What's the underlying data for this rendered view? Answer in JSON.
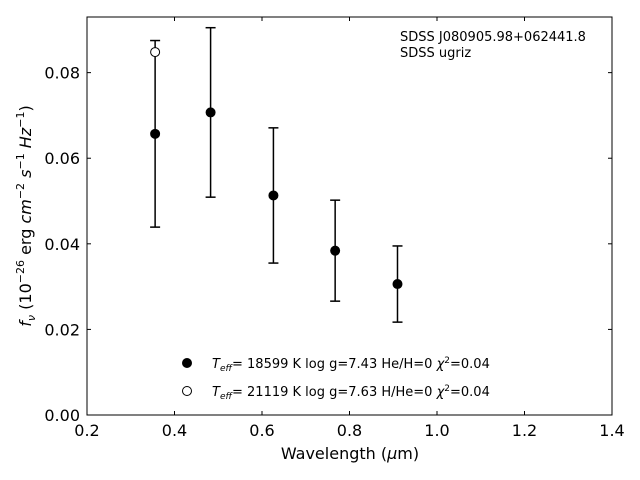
{
  "chart_data": {
    "type": "scatter",
    "annotation": {
      "object": "SDSS J080905.98+062441.8",
      "survey": "SDSS ugriz"
    },
    "xlabel": "Wavelength (μm)",
    "ylabel": "f_ν (10^-26 erg cm^-2 s^-1 Hz^-1)",
    "xlim": [
      0.2,
      1.4
    ],
    "ylim": [
      0.0,
      0.093
    ],
    "xticks": [
      "0.2",
      "0.4",
      "0.6",
      "0.8",
      "1.0",
      "1.2",
      "1.4"
    ],
    "yticks": [
      "0.00",
      "0.02",
      "0.04",
      "0.06",
      "0.08"
    ],
    "grid": false,
    "legend_position": "bottom-center",
    "observed": {
      "x": [
        0.3557,
        0.4825,
        0.6261,
        0.7672,
        0.9097
      ],
      "y": [
        0.0657,
        0.0707,
        0.0513,
        0.0384,
        0.0306
      ],
      "yerr": [
        0.0218,
        0.0198,
        0.0158,
        0.0118,
        0.0089
      ]
    },
    "series": [
      {
        "name": "T_eff= 18599 K  log g=7.43  He/H=0  χ²=0.04",
        "marker": "filled-circle",
        "color": "#000000",
        "x": [
          0.3557,
          0.4825,
          0.6261,
          0.7672,
          0.9097
        ],
        "y": [
          0.0657,
          0.0707,
          0.0513,
          0.0384,
          0.0306
        ]
      },
      {
        "name": "T_eff= 21119 K  log g=7.63  H/He=0  χ²=0.04",
        "marker": "open-circle",
        "color": "#000000",
        "x": [
          0.3557
        ],
        "y": [
          0.0848
        ]
      }
    ]
  }
}
